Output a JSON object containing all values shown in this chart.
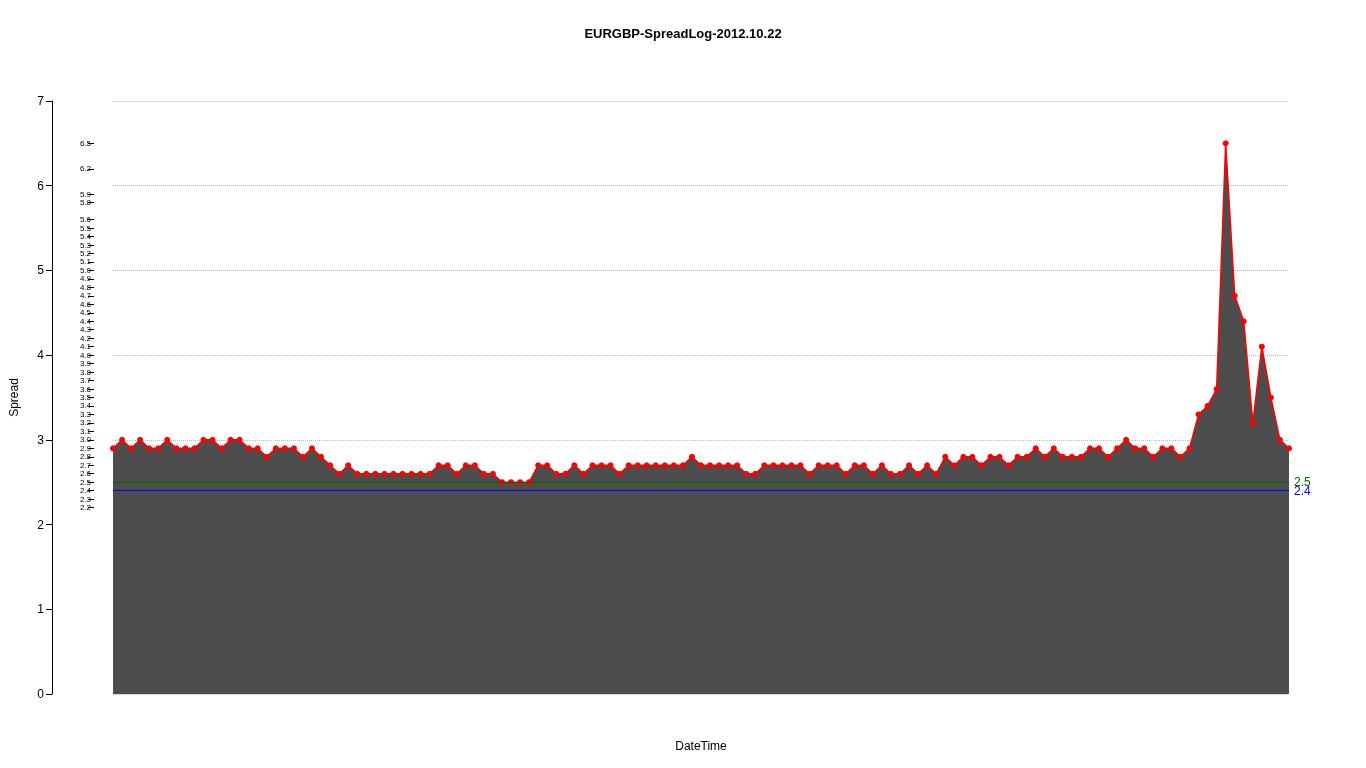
{
  "chart_data": {
    "type": "area",
    "title": "EURGBP-SpreadLog-2012.10.22",
    "xlabel": "DateTime",
    "ylabel": "Spread",
    "categories": [
      null,
      null,
      null,
      null,
      null,
      null,
      null,
      null,
      null,
      null,
      null,
      null,
      null,
      null,
      null,
      null,
      null,
      null,
      null,
      null,
      null,
      null,
      null,
      null,
      null,
      null,
      null,
      null,
      null,
      null,
      null,
      null,
      null,
      null,
      null,
      null,
      null,
      null,
      null,
      null,
      null,
      null,
      null,
      null,
      null,
      null,
      null,
      null,
      null,
      null,
      null,
      null,
      null,
      null,
      null,
      null,
      null,
      null,
      null,
      null,
      null,
      null,
      null,
      null,
      null,
      null,
      null,
      null,
      null,
      null,
      null,
      null,
      null,
      null,
      null,
      null,
      null,
      null,
      null,
      null,
      null,
      null,
      null,
      null,
      null,
      null,
      null,
      null,
      null,
      null,
      null,
      null,
      null,
      null,
      null,
      null,
      null,
      null,
      null,
      null,
      null,
      null,
      null,
      null,
      null,
      null,
      null,
      null,
      null,
      null,
      null,
      null,
      null,
      null,
      null,
      null,
      null,
      null,
      null,
      null,
      null,
      null,
      null,
      null,
      null,
      null,
      null,
      null,
      null,
      null,
      null
    ],
    "series": [
      {
        "color": "#ff0000",
        "values": [
          2.9,
          3.0,
          2.9,
          3.0,
          2.9,
          2.9,
          3.0,
          2.9,
          2.9,
          2.9,
          3.0,
          3.0,
          2.9,
          3.0,
          3.0,
          2.9,
          2.9,
          2.8,
          2.9,
          2.9,
          2.9,
          2.8,
          2.9,
          2.8,
          2.7,
          2.6,
          2.7,
          2.6,
          2.6,
          2.6,
          2.6,
          2.6,
          2.6,
          2.6,
          2.6,
          2.6,
          2.7,
          2.7,
          2.6,
          2.7,
          2.7,
          2.6,
          2.6,
          2.5,
          2.5,
          2.5,
          2.5,
          2.7,
          2.7,
          2.6,
          2.6,
          2.7,
          2.6,
          2.7,
          2.7,
          2.7,
          2.6,
          2.7,
          2.7,
          2.7,
          2.7,
          2.7,
          2.7,
          2.7,
          2.8,
          2.7,
          2.7,
          2.7,
          2.7,
          2.7,
          2.6,
          2.6,
          2.7,
          2.7,
          2.7,
          2.7,
          2.7,
          2.6,
          2.7,
          2.7,
          2.7,
          2.6,
          2.7,
          2.7,
          2.6,
          2.7,
          2.6,
          2.6,
          2.7,
          2.6,
          2.7,
          2.6,
          2.8,
          2.7,
          2.8,
          2.8,
          2.7,
          2.8,
          2.8,
          2.7,
          2.8,
          2.8,
          2.9,
          2.8,
          2.9,
          2.8,
          2.8,
          2.8,
          2.9,
          2.9,
          2.8,
          2.9,
          3.0,
          2.9,
          2.9,
          2.8,
          2.9,
          2.9,
          2.8,
          2.9,
          3.3,
          3.4,
          3.6,
          6.5,
          4.7,
          4.4,
          3.2,
          4.1,
          3.5,
          3.0,
          2.9
        ]
      }
    ],
    "ylim": [
      0,
      7
    ],
    "yticks": [
      0,
      1,
      2,
      3,
      4,
      5,
      6,
      7
    ],
    "y2lim": [
      0,
      7
    ],
    "y2ticks": [
      2.2,
      2.3,
      2.4,
      2.5,
      2.6,
      2.7,
      2.8,
      2.9,
      {
        "value": 3,
        "label": "3.0"
      },
      3.1,
      3.2,
      3.3,
      3.4,
      3.5,
      3.6,
      3.7,
      3.8,
      3.9,
      {
        "value": 4,
        "label": "4.0"
      },
      4.1,
      4.2,
      4.3,
      4.4,
      4.5,
      4.6,
      4.7,
      4.8,
      4.9,
      {
        "value": 5,
        "label": "5.0"
      },
      5.1,
      5.2,
      5.3,
      5.4,
      5.5,
      5.6,
      5.8,
      5.9,
      6.2,
      6.5
    ],
    "ref_lines": [
      {
        "axis": "y",
        "value": 2.5,
        "label": "2.5",
        "color": "#006400"
      },
      {
        "axis": "y",
        "value": 2.4,
        "label": "2.4",
        "color": "#0000ff"
      }
    ],
    "grid": "y",
    "marker": "circle",
    "tick_labels": "y"
  }
}
